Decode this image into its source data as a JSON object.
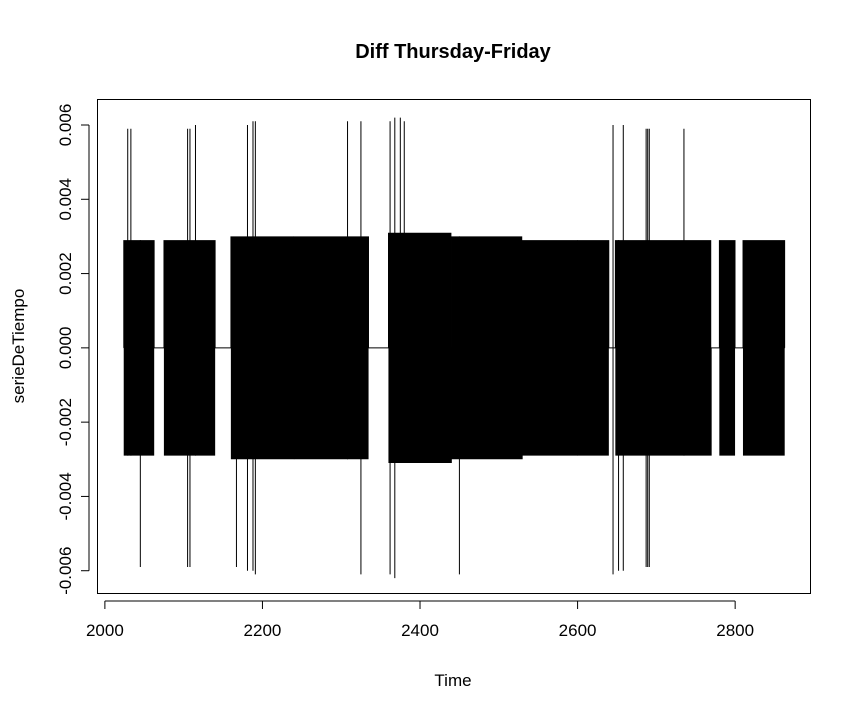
{
  "chart_data": {
    "type": "line",
    "title": "Diff Thursday-Friday",
    "xlabel": "Time",
    "ylabel": "serieDeTiempo",
    "xlim": [
      1990,
      2895
    ],
    "ylim": [
      -0.0066,
      0.0067
    ],
    "x_ticks": [
      2000,
      2200,
      2400,
      2600,
      2800
    ],
    "x_tick_labels": [
      "2000",
      "2200",
      "2400",
      "2600",
      "2800"
    ],
    "y_ticks": [
      -0.006,
      -0.004,
      -0.002,
      0.0,
      0.002,
      0.004,
      0.006
    ],
    "y_tick_labels": [
      "-0.006",
      "-0.004",
      "-0.002",
      "0.000",
      "0.002",
      "0.004",
      "0.006"
    ],
    "grid": false,
    "series_color": "#000000",
    "series": [
      {
        "start": 2024,
        "end": 2863,
        "band_segments": [
          {
            "from": 2024,
            "to": 2063,
            "amplitude": 0.0029
          },
          {
            "from": 2075,
            "to": 2140,
            "amplitude": 0.0029
          },
          {
            "from": 2160,
            "to": 2240,
            "amplitude": 0.003
          },
          {
            "from": 2240,
            "to": 2335,
            "amplitude": 0.003
          },
          {
            "from": 2360,
            "to": 2440,
            "amplitude": 0.0031
          },
          {
            "from": 2440,
            "to": 2530,
            "amplitude": 0.003
          },
          {
            "from": 2530,
            "to": 2600,
            "amplitude": 0.0029
          },
          {
            "from": 2600,
            "to": 2640,
            "amplitude": 0.0029
          },
          {
            "from": 2648,
            "to": 2770,
            "amplitude": 0.0029
          },
          {
            "from": 2780,
            "to": 2800,
            "amplitude": 0.0029
          },
          {
            "from": 2810,
            "to": 2863,
            "amplitude": 0.0029
          }
        ],
        "spikes": [
          {
            "x": 2029,
            "low": -0.0029,
            "high": 0.0059
          },
          {
            "x": 2033,
            "low": -0.0029,
            "high": 0.0059
          },
          {
            "x": 2045,
            "low": -0.0059,
            "high": 0.0029
          },
          {
            "x": 2105,
            "low": -0.0059,
            "high": 0.0059
          },
          {
            "x": 2108,
            "low": -0.0059,
            "high": 0.0059
          },
          {
            "x": 2115,
            "low": -0.0029,
            "high": 0.006
          },
          {
            "x": 2167,
            "low": -0.0059,
            "high": 0.0029
          },
          {
            "x": 2181,
            "low": -0.006,
            "high": 0.006
          },
          {
            "x": 2188,
            "low": -0.006,
            "high": 0.0061
          },
          {
            "x": 2191,
            "low": -0.0061,
            "high": 0.0061
          },
          {
            "x": 2308,
            "low": -0.003,
            "high": 0.0061
          },
          {
            "x": 2325,
            "low": -0.0061,
            "high": 0.0061
          },
          {
            "x": 2362,
            "low": -0.0061,
            "high": 0.0061
          },
          {
            "x": 2368,
            "low": -0.0062,
            "high": 0.0062
          },
          {
            "x": 2375,
            "low": -0.0031,
            "high": 0.0062
          },
          {
            "x": 2380,
            "low": -0.003,
            "high": 0.0061
          },
          {
            "x": 2450,
            "low": -0.0061,
            "high": 0.003
          },
          {
            "x": 2645,
            "low": -0.0061,
            "high": 0.006
          },
          {
            "x": 2652,
            "low": -0.006,
            "high": 0.0029
          },
          {
            "x": 2658,
            "low": -0.006,
            "high": 0.006
          },
          {
            "x": 2687,
            "low": -0.0059,
            "high": 0.0059
          },
          {
            "x": 2689,
            "low": -0.0059,
            "high": 0.0059
          },
          {
            "x": 2691,
            "low": -0.0059,
            "high": 0.0059
          },
          {
            "x": 2735,
            "low": -0.0029,
            "high": 0.0059
          }
        ]
      }
    ]
  }
}
